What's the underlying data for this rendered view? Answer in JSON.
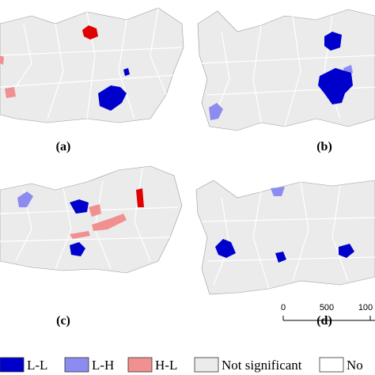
{
  "panels": [
    {
      "label": "(a)"
    },
    {
      "label": "(b)"
    },
    {
      "label": "(c)"
    },
    {
      "label": "(d)"
    }
  ],
  "legend": [
    {
      "label": "L-L",
      "color": "#0000cd"
    },
    {
      "label": "L-H",
      "color": "#8c8cf0"
    },
    {
      "label": "H-L",
      "color": "#f09090"
    },
    {
      "label": "Not significant",
      "color": "#ebebeb"
    },
    {
      "label": "No",
      "color": "#ffffff"
    }
  ],
  "scale_bar": {
    "ticks": [
      "0",
      "500",
      "100"
    ]
  }
}
